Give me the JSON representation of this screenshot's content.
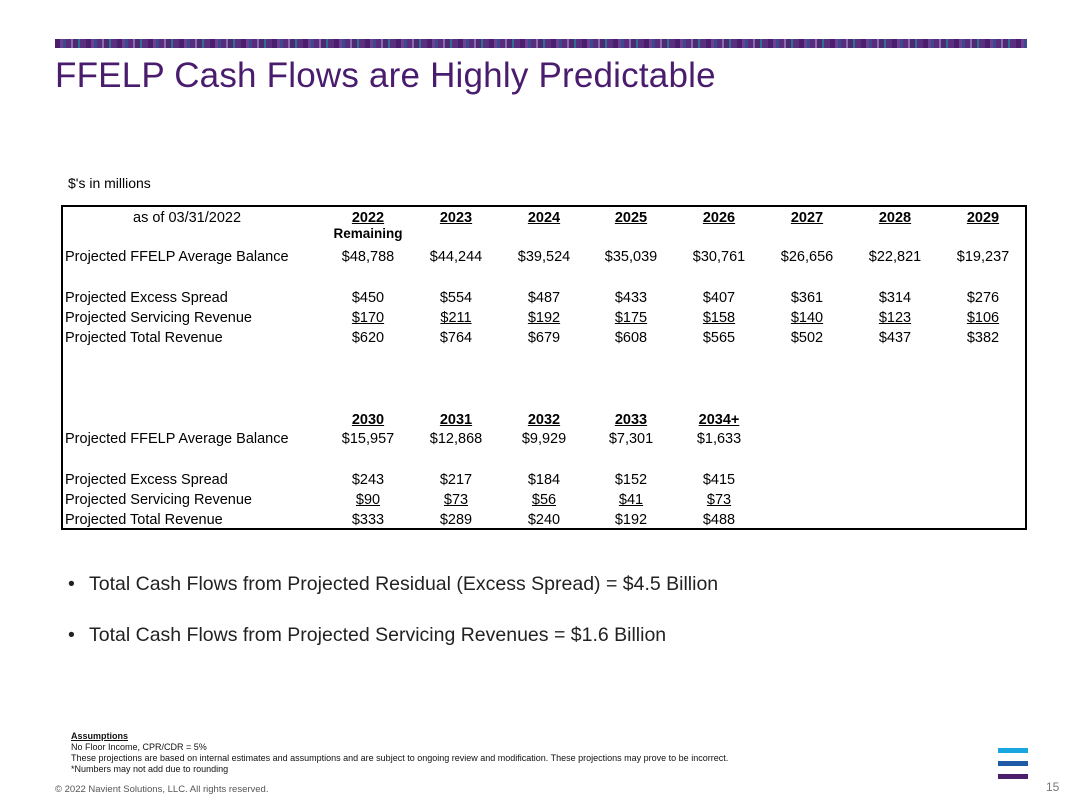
{
  "title": "FFELP Cash Flows are Highly Predictable",
  "units_note": "$'s in millions",
  "as_of_label": "as of  03/31/2022",
  "table1": {
    "years": [
      "2022",
      "2023",
      "2024",
      "2025",
      "2026",
      "2027",
      "2028",
      "2029"
    ],
    "first_year_sub": "Remaining",
    "rows": [
      {
        "label": "Projected FFELP Average Balance",
        "values": [
          "$48,788",
          "$44,244",
          "$39,524",
          "$35,039",
          "$30,761",
          "$26,656",
          "$22,821",
          "$19,237"
        ]
      },
      {
        "label": "Projected Excess Spread",
        "values": [
          "$450",
          "$554",
          "$487",
          "$433",
          "$407",
          "$361",
          "$314",
          "$276"
        ]
      },
      {
        "label": "Projected Servicing Revenue",
        "values": [
          "$170",
          "$211",
          "$192",
          "$175",
          "$158",
          "$140",
          "$123",
          "$106"
        ]
      },
      {
        "label": "Projected Total Revenue",
        "values": [
          "$620",
          "$764",
          "$679",
          "$608",
          "$565",
          "$502",
          "$437",
          "$382"
        ]
      }
    ]
  },
  "table2": {
    "years": [
      "2030",
      "2031",
      "2032",
      "2033",
      "2034+"
    ],
    "rows": [
      {
        "label": "Projected FFELP Average Balance",
        "values": [
          "$15,957",
          "$12,868",
          "$9,929",
          "$7,301",
          "$1,633"
        ]
      },
      {
        "label": "Projected Excess Spread",
        "values": [
          "$243",
          "$217",
          "$184",
          "$152",
          "$415"
        ]
      },
      {
        "label": "Projected Servicing Revenue",
        "values": [
          "$90",
          "$73",
          "$56",
          "$41",
          "$73"
        ]
      },
      {
        "label": "Projected Total Revenue",
        "values": [
          "$333",
          "$289",
          "$240",
          "$192",
          "$488"
        ]
      }
    ]
  },
  "bullets": [
    "Total Cash Flows from Projected Residual (Excess Spread) = $4.5 Billion",
    "Total Cash Flows from Projected Servicing Revenues = $1.6 Billion"
  ],
  "bullet_symbol": "•",
  "assumptions": {
    "heading": "Assumptions",
    "lines": [
      "No Floor Income,  CPR/CDR = 5%",
      "These projections are based on internal estimates and assumptions and are subject to ongoing review and modification.  These projections may prove to be incorrect.",
      "*Numbers may not add due to rounding"
    ]
  },
  "footer": {
    "copyright": "© 2022 Navient Solutions, LLC. All rights reserved.",
    "page_number": "15"
  },
  "colors": {
    "title": "#4a1c6e",
    "logo_top": "#1aa7e0",
    "logo_mid": "#1f5aa6",
    "logo_bottom": "#4b1e6e"
  }
}
